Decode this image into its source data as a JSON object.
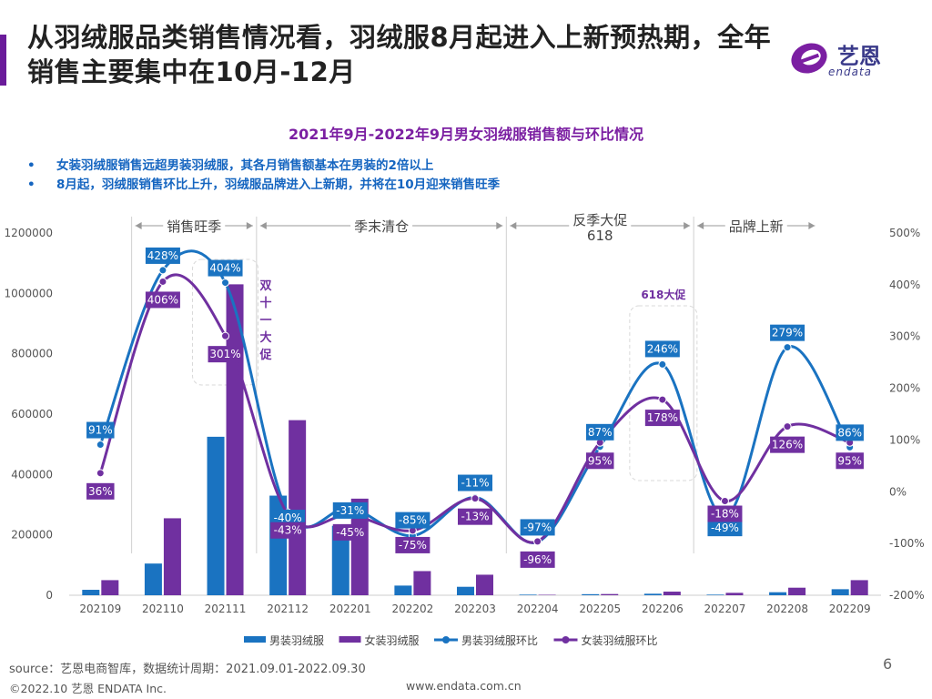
{
  "headline": "从羽绒服品类销售情况看，羽绒服8月起进入上新预热期，全年销售主要集中在10月-12月",
  "logo": {
    "cn": "艺恩",
    "en": "endata",
    "icon": "endata-e-icon"
  },
  "colors": {
    "male_bar": "#1a73c1",
    "female_bar": "#7030a0",
    "accent": "#6a1b9a",
    "divider": "#d0d0d0"
  },
  "bullets": [
    "女装羽绒服销售远超男装羽绒服，其各月销售额基本在男装的2倍以上",
    "8月起，羽绒服销售环比上升，羽绒服品牌进入上新期，并将在10月迎来销售旺季"
  ],
  "bullet_mark": "•",
  "footer": {
    "source": "source：艺恩电商智库，数据统计周期：2021.09.01-2022.09.30",
    "page": "6",
    "copyright": "©2022.10 艺恩 ENDATA Inc.",
    "url": "www.endata.com.cn"
  },
  "chart_data": {
    "type": "bar",
    "title": "2021年9月-2022年9月男女羽绒服销售额与环比情况",
    "categories": [
      "202109",
      "202110",
      "202111",
      "202112",
      "202201",
      "202202",
      "202203",
      "202204",
      "202205",
      "202206",
      "202207",
      "202208",
      "202209"
    ],
    "series": [
      {
        "name": "男装羽绒服",
        "type": "bar",
        "axis": "left",
        "values": [
          18000,
          105000,
          525000,
          330000,
          230000,
          32000,
          28000,
          2000,
          3500,
          5000,
          2000,
          10000,
          20000
        ]
      },
      {
        "name": "女装羽绒服",
        "type": "bar",
        "axis": "left",
        "values": [
          50000,
          255000,
          1030000,
          580000,
          320000,
          80000,
          68000,
          1500,
          4000,
          12000,
          8000,
          25000,
          50000
        ]
      },
      {
        "name": "男装羽绒服环比",
        "type": "line",
        "axis": "right",
        "values": [
          91,
          428,
          404,
          -40,
          -31,
          -85,
          -11,
          -97,
          87,
          246,
          -49,
          279,
          86
        ],
        "labels": [
          "91%",
          "428%",
          "404%",
          "-40%",
          "-31%",
          "-85%",
          "-11%",
          "-97%",
          "87%",
          "246%",
          "-49%",
          "279%",
          "86%"
        ]
      },
      {
        "name": "女装羽绒服环比",
        "type": "line",
        "axis": "right",
        "values": [
          36,
          406,
          301,
          -43,
          -45,
          -75,
          -13,
          -96,
          95,
          178,
          -18,
          126,
          95
        ],
        "labels": [
          "36%",
          "406%",
          "301%",
          "-43%",
          "-45%",
          "-75%",
          "-13%",
          "-96%",
          "95%",
          "178%",
          "-18%",
          "126%",
          "95%"
        ]
      }
    ],
    "y_left": {
      "min": 0,
      "max": 1200000,
      "ticks": [
        "0",
        "200000",
        "400000",
        "600000",
        "800000",
        "1000000",
        "1200000"
      ]
    },
    "y_right": {
      "min": -200,
      "max": 500,
      "ticks": [
        "-200%",
        "-100%",
        "0%",
        "100%",
        "200%",
        "300%",
        "400%",
        "500%"
      ]
    },
    "periods": [
      {
        "label": "销售旺季",
        "from": 1,
        "to": 3
      },
      {
        "label": "季末清仓",
        "from": 3,
        "to": 7
      },
      {
        "label": "反季大促",
        "label2": "618",
        "from": 7,
        "to": 10
      },
      {
        "label": "品牌上新",
        "from": 10,
        "to": 12
      }
    ],
    "annotations": {
      "double11": "双十一大促",
      "promo618": "618大促"
    },
    "legend_position": "bottom"
  }
}
